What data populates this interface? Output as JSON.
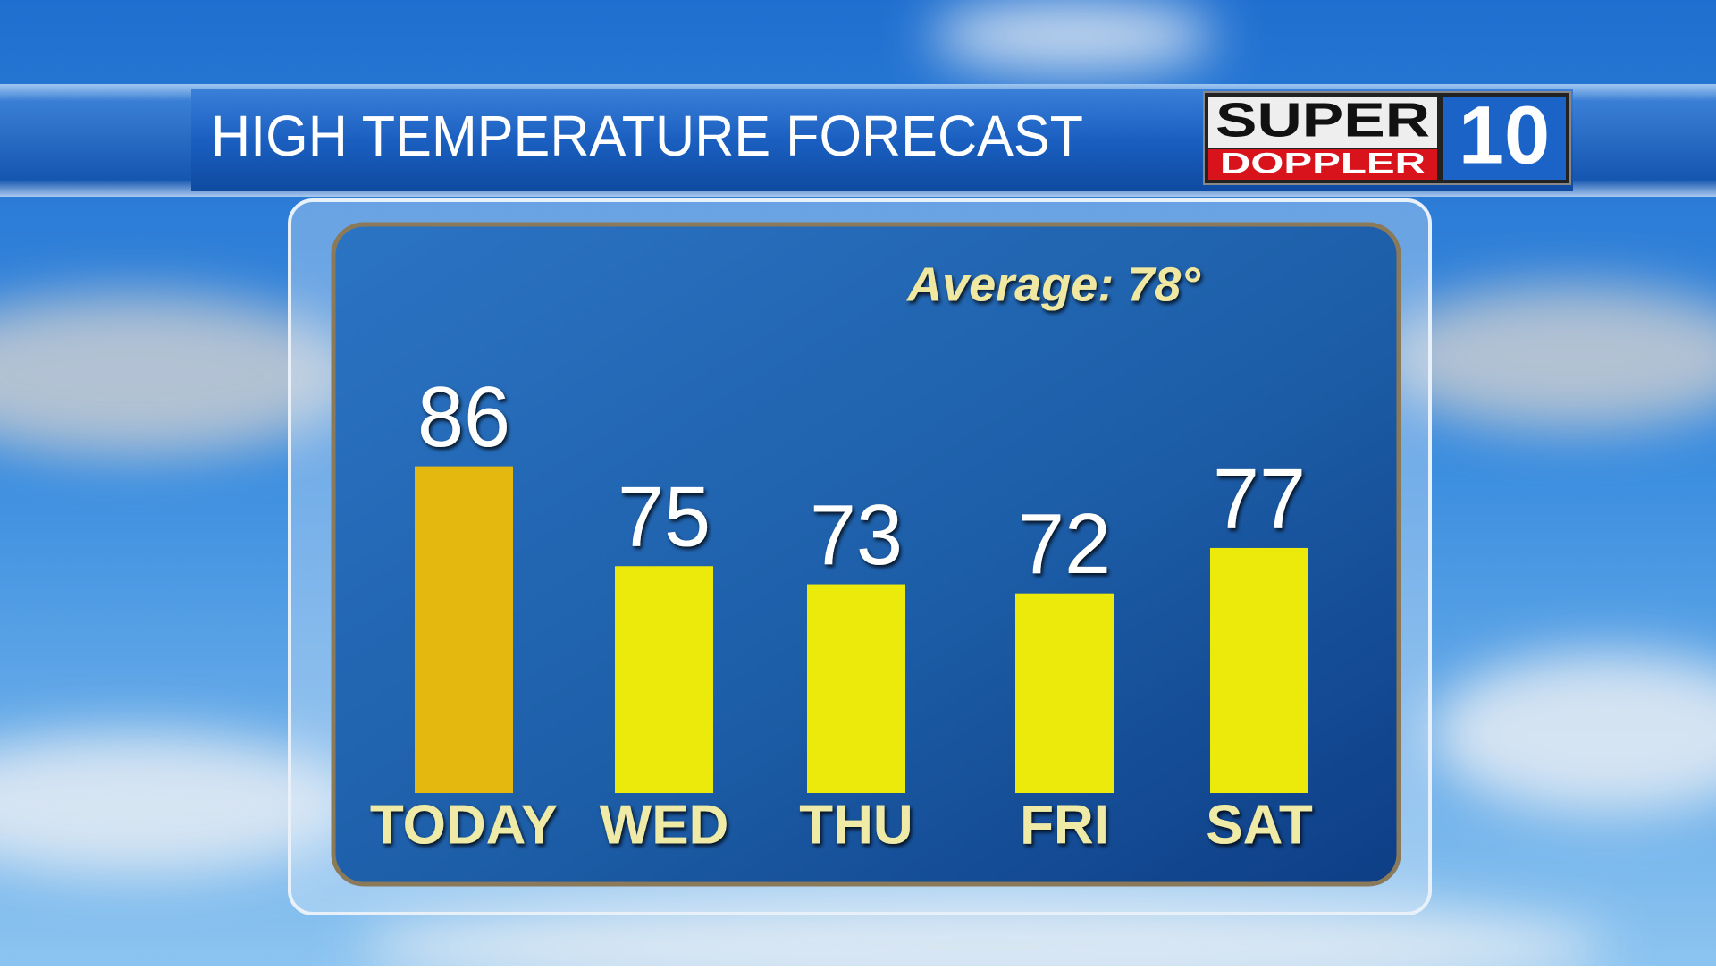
{
  "chart_data": {
    "type": "bar",
    "title": "HIGH TEMPERATURE FORECAST",
    "annotation": "Average: 78°",
    "categories": [
      "TODAY",
      "WED",
      "THU",
      "FRI",
      "SAT"
    ],
    "values": [
      86,
      75,
      73,
      72,
      77
    ],
    "colors": [
      "#e5b80f",
      "#ebea0b",
      "#ebea0b",
      "#ebea0b",
      "#ebea0b"
    ],
    "ylim": [
      50,
      90
    ]
  },
  "logo": {
    "top": "SUPER",
    "bottom": "DOPPLER",
    "number": "10"
  }
}
